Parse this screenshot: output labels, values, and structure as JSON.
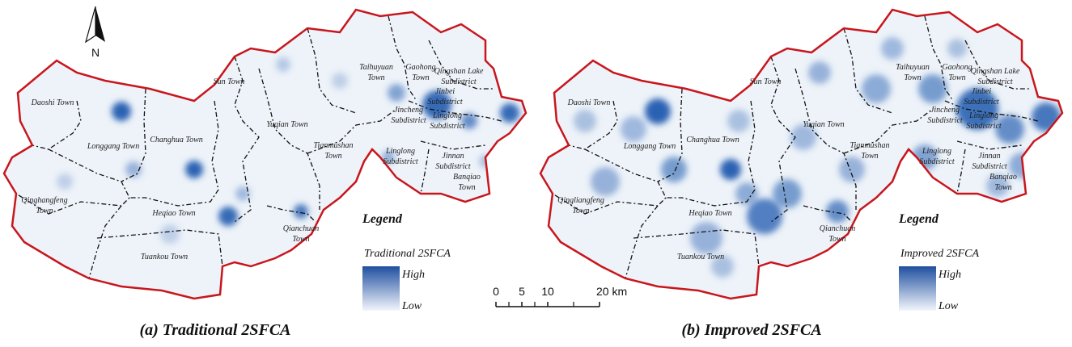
{
  "north_arrow": {
    "label": "N"
  },
  "scale_bar": {
    "ticks": [
      0,
      5,
      10,
      {
        "value": 20,
        "label": "20 km"
      }
    ]
  },
  "panels": [
    {
      "caption": "(a) Traditional 2SFCA",
      "legend": {
        "title": "Legend",
        "subtitle": "Traditional 2SFCA",
        "high": "High",
        "low": "Low"
      },
      "labels": [
        [
          "Daoshi Town"
        ],
        [
          "Longgang Town"
        ],
        [
          "Changhua Town"
        ],
        [
          "Sun Town"
        ],
        [
          "Yuqian Town"
        ],
        [
          "Taihuyuan",
          "Town"
        ],
        [
          "Gaohong",
          "Town"
        ],
        [
          "Qingshan Lake",
          "Subdistrict"
        ],
        [
          "Jinbei",
          "Subdistrict"
        ],
        [
          "Jincheng",
          "Subdistrict"
        ],
        [
          "Linglong",
          "Subdistrict"
        ],
        [
          "Tianmushan",
          "Town"
        ],
        [
          "Linglong",
          "Subdistrict"
        ],
        [
          "Jinnan",
          "Subdistrict"
        ],
        [
          "Banqiao",
          "Town"
        ],
        [
          "Qinghangfeng",
          "Town"
        ],
        [
          "Heqiao Town"
        ],
        [
          "Qianchuan",
          "Town"
        ],
        [
          "Tuankou Town"
        ]
      ]
    },
    {
      "caption": "(b) Improved 2SFCA",
      "legend": {
        "title": "Legend",
        "subtitle": "Improved 2SFCA",
        "high": "High",
        "low": "Low"
      },
      "labels": [
        [
          "Daoshi Town"
        ],
        [
          "Longgang Town"
        ],
        [
          "Changhua Town"
        ],
        [
          "Sun Town"
        ],
        [
          "Yuqian Town"
        ],
        [
          "Taihuyuan",
          "Town"
        ],
        [
          "Gaohong",
          "Town"
        ],
        [
          "Qingshan Lake",
          "Subdistrict"
        ],
        [
          "Jinbei",
          "Subdistrict"
        ],
        [
          "Jincheng",
          "Subdistrict"
        ],
        [
          "Linglong",
          "Subdistrict"
        ],
        [
          "Tianmushan",
          "Town"
        ],
        [
          "Linglong",
          "Subdistrict"
        ],
        [
          "Jinnan",
          "Subdistrict"
        ],
        [
          "Banqiao",
          "Town"
        ],
        [
          "Qingliangfeng",
          "Town"
        ],
        [
          "Heqiao Town"
        ],
        [
          "Qianchuan",
          "Town"
        ],
        [
          "Tuankou Town"
        ]
      ]
    }
  ]
}
